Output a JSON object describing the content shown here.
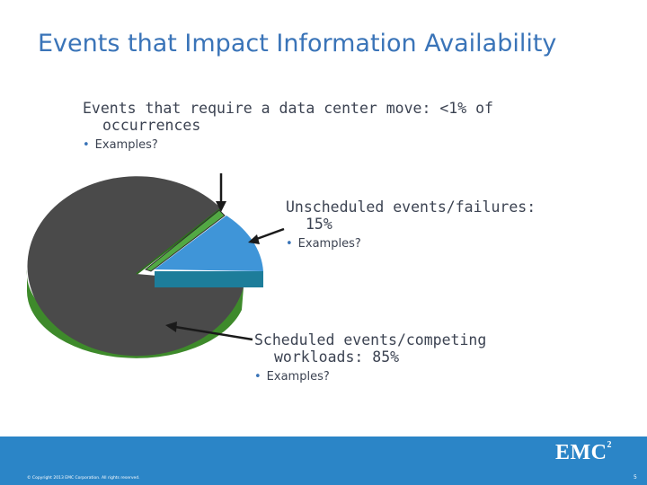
{
  "slide": {
    "title": "Events that Impact Information Availability"
  },
  "callouts": [
    {
      "line1": "Events that require a data center move: <1% of",
      "line2": "occurrences",
      "bullet": "Examples?"
    },
    {
      "line1": "Unscheduled events/failures:",
      "line2": "15%",
      "bullet": "Examples?"
    },
    {
      "line1": "Scheduled events/competing",
      "line2": "workloads: 85%",
      "bullet": "Examples?"
    }
  ],
  "footer": {
    "copyright": "© Copyright 2013 EMC Corporation. All rights reserved.",
    "logo": "EMC",
    "logo_sup": "2",
    "page": "5"
  },
  "colors": {
    "title": "#3a74b8",
    "footer": "#2b85c7",
    "slice_scheduled": "#4a4a4a",
    "slice_scheduled_side": "#3e8a2b",
    "slice_unscheduled": "#3f95d8",
    "slice_unscheduled_side": "#1d7d9a",
    "slice_move": "#52a843"
  }
}
